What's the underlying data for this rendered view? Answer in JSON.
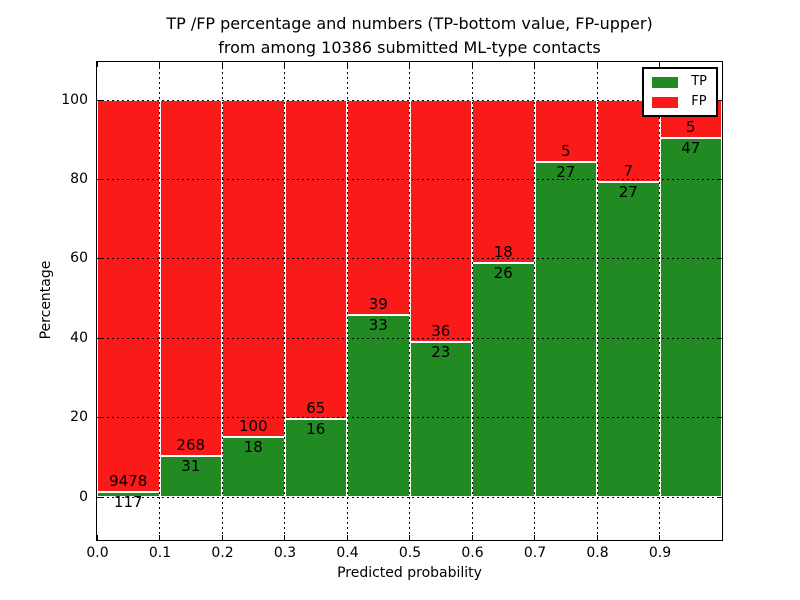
{
  "figure": {
    "title_line1": "TP /FP percentage and numbers (TP-bottom value, FP-upper)",
    "title_line2": "from among 10386 submitted ML-type contacts"
  },
  "chart_data": {
    "type": "bar",
    "stacked": true,
    "title": "TP /FP percentage and numbers (TP-bottom value, FP-upper) from among 10386 submitted ML-type contacts",
    "xlabel": "Predicted probability",
    "ylabel": "Percentage",
    "total_contacts": 10386,
    "xlim": [
      0.0,
      1.0
    ],
    "ylim": [
      -10.8,
      109.6
    ],
    "bin_width": 0.1,
    "bin_starts": [
      0.0,
      0.1,
      0.2,
      0.3,
      0.4,
      0.5,
      0.6,
      0.7,
      0.8,
      0.9
    ],
    "xticks": [
      "0.0",
      "0.1",
      "0.2",
      "0.3",
      "0.4",
      "0.5",
      "0.6",
      "0.7",
      "0.8",
      "0.9"
    ],
    "yticks": [
      0,
      20,
      40,
      60,
      80,
      100
    ],
    "grid": "on-dotted-black",
    "bar_edge_color": "#ffffff",
    "annotation_color": "#000000",
    "series": [
      {
        "name": "TP",
        "color": "#228a22",
        "counts": [
          117,
          31,
          18,
          16,
          33,
          23,
          26,
          27,
          27,
          47
        ],
        "percentages": [
          1.22,
          10.37,
          15.25,
          19.75,
          45.83,
          38.98,
          59.09,
          84.38,
          79.41,
          90.38
        ]
      },
      {
        "name": "FP",
        "color": "#fa1a1a",
        "counts": [
          9478,
          268,
          100,
          65,
          39,
          36,
          18,
          5,
          7,
          5
        ],
        "percentages": [
          98.78,
          89.63,
          84.75,
          80.25,
          54.17,
          61.02,
          40.91,
          15.62,
          20.59,
          9.62
        ]
      }
    ],
    "legend": {
      "position": "upper right",
      "entries": [
        {
          "label": "TP",
          "color": "#228a22"
        },
        {
          "label": "FP",
          "color": "#fa1a1a"
        }
      ]
    }
  }
}
